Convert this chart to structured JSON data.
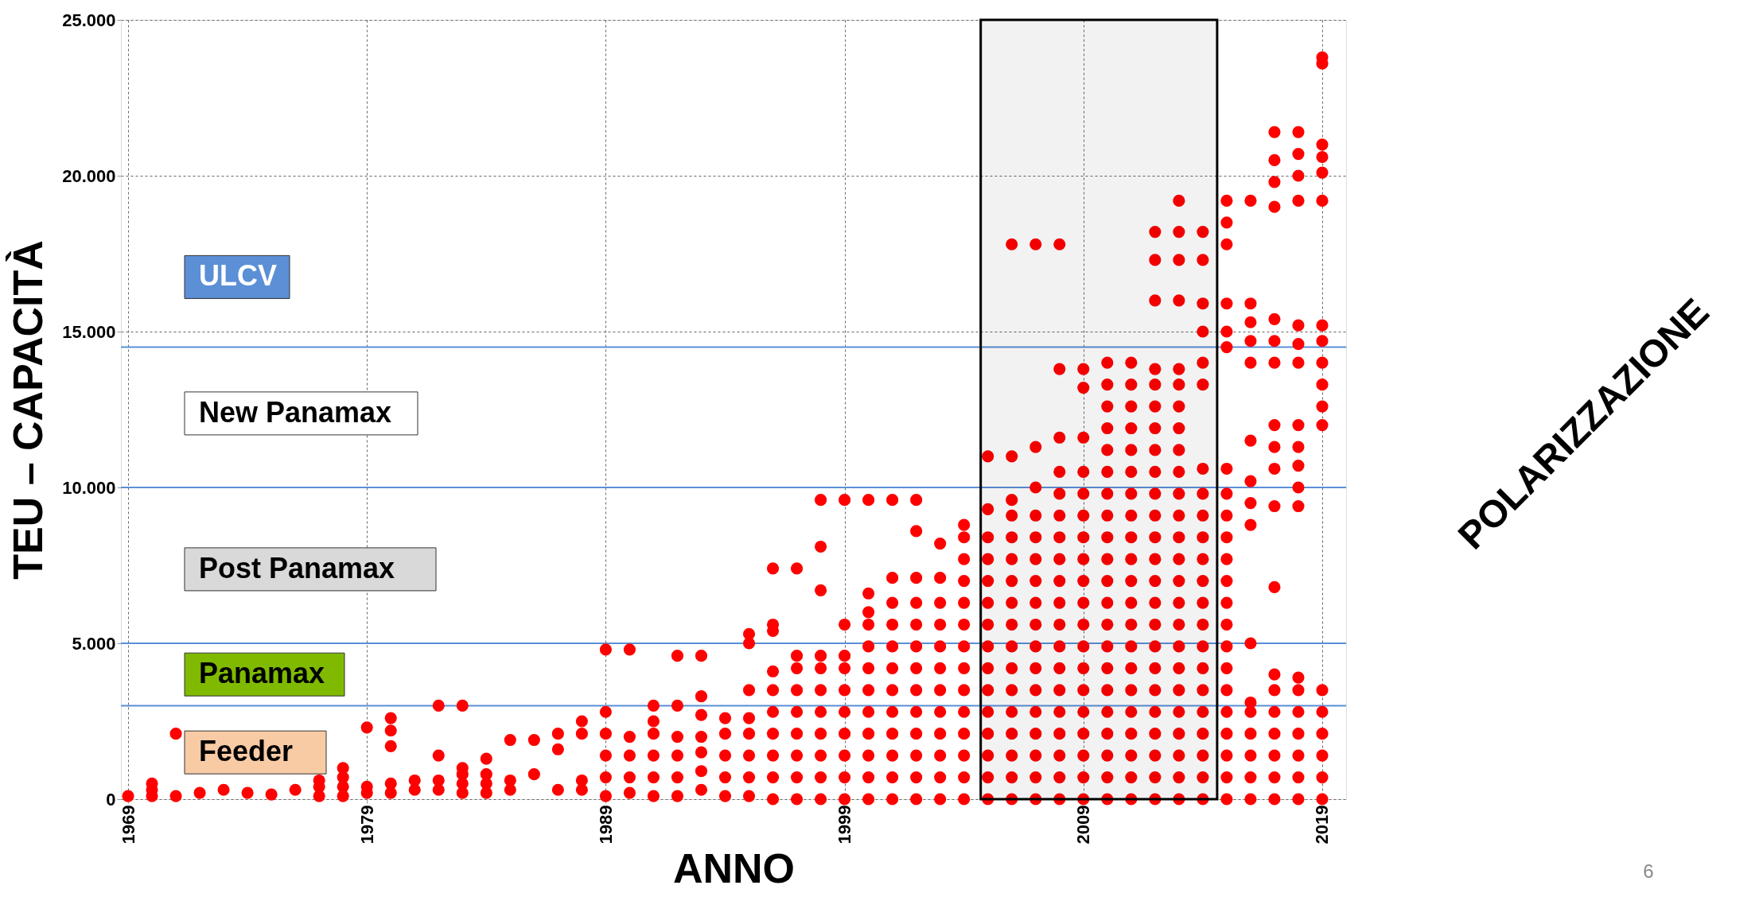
{
  "chart_data": {
    "type": "scatter",
    "marker": "circle",
    "xlabel": "ANNO",
    "ylabel": "TEU – CAPACITÀ",
    "grid": true,
    "xlim": [
      1968.7,
      2020
    ],
    "xticks": [
      1969,
      1979,
      1989,
      1999,
      2009,
      2019
    ],
    "ylim": [
      0,
      25000
    ],
    "yticks": [
      {
        "value": 0,
        "label": "0"
      },
      {
        "value": 5000,
        "label": "5.000"
      },
      {
        "value": 10000,
        "label": "10.000"
      },
      {
        "value": 15000,
        "label": "15.000"
      },
      {
        "value": 20000,
        "label": "20.000"
      },
      {
        "value": 25000,
        "label": "25.000"
      }
    ],
    "series": [
      {
        "color": "#ff0000",
        "x": [
          1969,
          1970,
          1970,
          1970,
          1971,
          1971,
          1972,
          1973,
          1974,
          1975,
          1976,
          1977,
          1977,
          1977,
          1978,
          1978,
          1978,
          1978,
          1979,
          1979,
          1979,
          1980,
          1980,
          1980,
          1980,
          1980,
          1981,
          1981,
          1982,
          1982,
          1982,
          1982,
          1983,
          1983,
          1983,
          1983,
          1983,
          1984,
          1984,
          1984,
          1984,
          1985,
          1985,
          1985,
          1986,
          1986,
          1987,
          1987,
          1987,
          1988,
          1988,
          1988,
          1988
        ],
        "values": [
          100,
          100,
          300,
          500,
          100,
          2100,
          200,
          300,
          200,
          150,
          300,
          100,
          400,
          600,
          100,
          400,
          700,
          1000,
          200,
          400,
          2300,
          200,
          500,
          1700,
          2200,
          2600,
          300,
          600,
          300,
          600,
          1400,
          3000,
          200,
          500,
          800,
          1000,
          3000,
          200,
          500,
          800,
          1300,
          300,
          600,
          1900,
          800,
          1900,
          300,
          1600,
          2100,
          300,
          600,
          2100,
          2500
        ]
      },
      {
        "color": "#ff0000",
        "x": [
          1989,
          1989,
          1989,
          1989,
          1989,
          1989,
          1990,
          1990,
          1990,
          1990,
          1990,
          1991,
          1991,
          1991,
          1991,
          1991,
          1991,
          1992,
          1992,
          1992,
          1992,
          1992,
          1992,
          1993,
          1993,
          1993,
          1993,
          1993,
          1993,
          1993,
          1994,
          1994,
          1994,
          1994,
          1994,
          1995,
          1995,
          1995,
          1995,
          1995,
          1995,
          1995,
          1995
        ],
        "values": [
          100,
          700,
          1400,
          2100,
          2800,
          4800,
          200,
          700,
          1400,
          2000,
          4800,
          100,
          700,
          1400,
          2100,
          2500,
          3000,
          100,
          700,
          1400,
          2000,
          3000,
          4600,
          300,
          900,
          1500,
          2000,
          2700,
          3300,
          4600,
          100,
          700,
          1400,
          2100,
          2600,
          100,
          700,
          1400,
          2100,
          2600,
          3500,
          5000,
          5300
        ]
      },
      {
        "color": "#ff0000",
        "x": [
          1996,
          1996,
          1996,
          1996,
          1996,
          1996,
          1996,
          1996,
          1996,
          1996,
          1997,
          1997,
          1997,
          1997,
          1997,
          1997,
          1997,
          1997,
          1997,
          1998,
          1998,
          1998,
          1998,
          1998,
          1998,
          1998,
          1998,
          1998,
          1998,
          1998,
          1999,
          1999,
          1999,
          1999,
          1999,
          1999,
          1999,
          1999,
          1999,
          1999
        ],
        "values": [
          0,
          700,
          1400,
          2100,
          2800,
          3500,
          4100,
          5400,
          5600,
          7400,
          0,
          700,
          1400,
          2100,
          2800,
          3500,
          4200,
          4600,
          7400,
          0,
          700,
          1400,
          2100,
          2800,
          3500,
          4200,
          4600,
          6700,
          8100,
          9600,
          0,
          700,
          1400,
          2100,
          2800,
          3500,
          4200,
          4600,
          5600,
          9600
        ]
      },
      {
        "color": "#ff0000",
        "x": [
          2000,
          2000,
          2000,
          2000,
          2000,
          2000,
          2000,
          2000,
          2000,
          2000,
          2000,
          2000,
          2001,
          2001,
          2001,
          2001,
          2001,
          2001,
          2001,
          2001,
          2001,
          2001,
          2001,
          2001,
          2002,
          2002,
          2002,
          2002,
          2002,
          2002,
          2002,
          2002,
          2002,
          2002,
          2002,
          2002,
          2002
        ],
        "values": [
          0,
          700,
          1400,
          2100,
          2800,
          3500,
          4200,
          4900,
          5600,
          6000,
          6600,
          9600,
          0,
          700,
          1400,
          2100,
          2800,
          3500,
          4200,
          4900,
          5600,
          6300,
          7100,
          9600,
          0,
          700,
          1400,
          2100,
          2800,
          3500,
          4200,
          4900,
          5600,
          6300,
          7100,
          8600,
          9600
        ]
      },
      {
        "color": "#ff0000",
        "x": [
          2003,
          2003,
          2003,
          2003,
          2003,
          2003,
          2003,
          2003,
          2003,
          2003,
          2003,
          2003,
          2004,
          2004,
          2004,
          2004,
          2004,
          2004,
          2004,
          2004,
          2004,
          2004,
          2004,
          2004,
          2004,
          2004,
          2005,
          2005,
          2005,
          2005,
          2005,
          2005,
          2005,
          2005,
          2005,
          2005,
          2005,
          2005,
          2005,
          2005,
          2005
        ],
        "values": [
          0,
          700,
          1400,
          2100,
          2800,
          3500,
          4200,
          4900,
          5600,
          6300,
          7100,
          8200,
          0,
          700,
          1400,
          2100,
          2800,
          3500,
          4200,
          4900,
          5600,
          6300,
          7000,
          7700,
          8400,
          8800,
          0,
          700,
          1400,
          2100,
          2800,
          3500,
          4200,
          4900,
          5600,
          6300,
          7000,
          7700,
          8400,
          9300,
          11000
        ]
      },
      {
        "color": "#ff0000",
        "x": [
          2006,
          2006,
          2006,
          2006,
          2006,
          2006,
          2006,
          2006,
          2006,
          2006,
          2006,
          2006,
          2006,
          2006,
          2006,
          2006,
          2006,
          2007,
          2007,
          2007,
          2007,
          2007,
          2007,
          2007,
          2007,
          2007,
          2007,
          2007,
          2007,
          2007,
          2007,
          2007,
          2007,
          2007
        ],
        "values": [
          0,
          700,
          1400,
          2100,
          2800,
          3500,
          4200,
          4900,
          5600,
          6300,
          7000,
          7700,
          8400,
          9100,
          9600,
          11000,
          17800,
          0,
          700,
          1400,
          2100,
          2800,
          3500,
          4200,
          4900,
          5600,
          6300,
          7000,
          7700,
          8400,
          9100,
          10000,
          11300,
          17800
        ]
      },
      {
        "color": "#ff0000",
        "x": [
          2008,
          2008,
          2008,
          2008,
          2008,
          2008,
          2008,
          2008,
          2008,
          2008,
          2008,
          2008,
          2008,
          2008,
          2008,
          2008,
          2008,
          2008,
          2008,
          2009,
          2009,
          2009,
          2009,
          2009,
          2009,
          2009,
          2009,
          2009,
          2009,
          2009,
          2009,
          2009,
          2009,
          2009,
          2009,
          2009,
          2009,
          2009
        ],
        "values": [
          0,
          700,
          1400,
          2100,
          2800,
          3500,
          4200,
          4900,
          5600,
          6300,
          7000,
          7700,
          8400,
          9100,
          9800,
          10500,
          11600,
          13800,
          17800,
          0,
          700,
          1400,
          2100,
          2800,
          3500,
          4200,
          4900,
          5600,
          6300,
          7000,
          7700,
          8400,
          9100,
          9800,
          10500,
          11600,
          13200,
          13800
        ]
      },
      {
        "color": "#ff0000",
        "x": [
          2010,
          2010,
          2010,
          2010,
          2010,
          2010,
          2010,
          2010,
          2010,
          2010,
          2010,
          2010,
          2010,
          2010,
          2010,
          2010,
          2010,
          2010,
          2010,
          2010,
          2010,
          2011,
          2011,
          2011,
          2011,
          2011,
          2011,
          2011,
          2011,
          2011,
          2011,
          2011,
          2011,
          2011,
          2011,
          2011,
          2011,
          2011,
          2011,
          2011,
          2011,
          2011
        ],
        "values": [
          0,
          700,
          1400,
          2100,
          2800,
          3500,
          4200,
          4900,
          5600,
          6300,
          7000,
          7700,
          8400,
          9100,
          9800,
          10500,
          11200,
          11900,
          12600,
          13300,
          14000,
          0,
          700,
          1400,
          2100,
          2800,
          3500,
          4200,
          4900,
          5600,
          6300,
          7000,
          7700,
          8400,
          9100,
          9800,
          10500,
          11200,
          11900,
          12600,
          13300,
          14000
        ]
      },
      {
        "color": "#ff0000",
        "x": [
          2012,
          2012,
          2012,
          2012,
          2012,
          2012,
          2012,
          2012,
          2012,
          2012,
          2012,
          2012,
          2012,
          2012,
          2012,
          2012,
          2012,
          2012,
          2012,
          2012,
          2012,
          2012,
          2012,
          2012
        ],
        "values": [
          0,
          700,
          1400,
          2100,
          2800,
          3500,
          4200,
          4900,
          5600,
          6300,
          7000,
          7700,
          8400,
          9100,
          9800,
          10500,
          11200,
          11900,
          12600,
          13300,
          13800,
          16000,
          17300,
          18200
        ]
      },
      {
        "color": "#ff0000",
        "x": [
          2013,
          2013,
          2013,
          2013,
          2013,
          2013,
          2013,
          2013,
          2013,
          2013,
          2013,
          2013,
          2013,
          2013,
          2013,
          2013,
          2013,
          2013,
          2013,
          2013,
          2013,
          2013,
          2013,
          2013,
          2013
        ],
        "values": [
          0,
          700,
          1400,
          2100,
          2800,
          3500,
          4200,
          4900,
          5600,
          6300,
          7000,
          7700,
          8400,
          9100,
          9800,
          10500,
          11200,
          11900,
          12600,
          13300,
          13800,
          16000,
          17300,
          18200,
          19200
        ]
      },
      {
        "color": "#ff0000",
        "x": [
          2014,
          2014,
          2014,
          2014,
          2014,
          2014,
          2014,
          2014,
          2014,
          2014,
          2014,
          2014,
          2014,
          2014,
          2014,
          2014,
          2014,
          2014,
          2014,
          2014,
          2014,
          2014
        ],
        "values": [
          0,
          700,
          1400,
          2100,
          2800,
          3500,
          4200,
          4900,
          5600,
          6300,
          7000,
          7700,
          8400,
          9100,
          9800,
          10600,
          13300,
          14000,
          15000,
          15900,
          17300,
          18200
        ]
      },
      {
        "color": "#ff0000",
        "x": [
          2015,
          2015,
          2015,
          2015,
          2015,
          2015,
          2015,
          2015,
          2015,
          2015,
          2015,
          2015,
          2015,
          2015,
          2015,
          2015,
          2015,
          2015,
          2015,
          2015,
          2015,
          2015
        ],
        "values": [
          0,
          700,
          1400,
          2100,
          2800,
          3500,
          4200,
          4900,
          5600,
          6300,
          7000,
          7700,
          8400,
          9100,
          9800,
          10600,
          14500,
          15000,
          15900,
          17800,
          18500,
          19200
        ]
      },
      {
        "color": "#ff0000",
        "x": [
          2016,
          2016,
          2016,
          2016,
          2016,
          2016,
          2016,
          2016,
          2016,
          2016,
          2016,
          2016,
          2016,
          2016,
          2016,
          2016
        ],
        "values": [
          0,
          700,
          1400,
          2100,
          2800,
          3100,
          5000,
          8800,
          9500,
          10200,
          11500,
          14000,
          14700,
          15300,
          15900,
          19200
        ]
      },
      {
        "color": "#ff0000",
        "x": [
          2017,
          2017,
          2017,
          2017,
          2017,
          2017,
          2017,
          2017,
          2017,
          2017,
          2017,
          2017,
          2017,
          2017,
          2017,
          2017,
          2017,
          2017,
          2017
        ],
        "values": [
          0,
          700,
          1400,
          2100,
          2800,
          3500,
          4000,
          6800,
          9400,
          10600,
          11300,
          12000,
          14000,
          14700,
          15400,
          19000,
          19800,
          20500,
          21400
        ]
      },
      {
        "color": "#ff0000",
        "x": [
          2018,
          2018,
          2018,
          2018,
          2018,
          2018,
          2018,
          2018,
          2018,
          2018,
          2018,
          2018,
          2018,
          2018,
          2018,
          2018,
          2018,
          2018,
          2018
        ],
        "values": [
          0,
          700,
          1400,
          2100,
          2800,
          3500,
          3900,
          9400,
          10000,
          10700,
          11300,
          12000,
          14000,
          14600,
          15200,
          19200,
          20000,
          20700,
          21400
        ]
      },
      {
        "color": "#ff0000",
        "x": [
          2019,
          2019,
          2019,
          2019,
          2019,
          2019,
          2019,
          2019,
          2019,
          2019,
          2019,
          2019,
          2019,
          2019,
          2019,
          2019,
          2019,
          2019
        ],
        "values": [
          0,
          700,
          1400,
          2100,
          2800,
          3500,
          12000,
          12600,
          13300,
          14000,
          14700,
          15200,
          19200,
          20100,
          20600,
          21000,
          23600,
          23800
        ]
      }
    ],
    "ref_lines": [
      {
        "axis": "y",
        "value": 14500,
        "color": "#5b8fd6",
        "line_style": "solid"
      },
      {
        "axis": "y",
        "value": 10000,
        "color": "#5b8fd6",
        "line_style": "solid"
      },
      {
        "axis": "y",
        "value": 5000,
        "color": "#5b8fd6",
        "line_style": "solid"
      },
      {
        "axis": "y",
        "value": 3000,
        "color": "#5b8fd6",
        "line_style": "solid"
      }
    ],
    "bands": [
      {
        "axis": "x",
        "from": 2004.7,
        "to": 2014.6,
        "color": "#000000"
      }
    ],
    "annotations": [
      "ULCV",
      "New Panamax",
      "Post Panamax",
      "Panamax",
      "Feeder",
      "POLARIZZAZIONE",
      "6"
    ]
  }
}
